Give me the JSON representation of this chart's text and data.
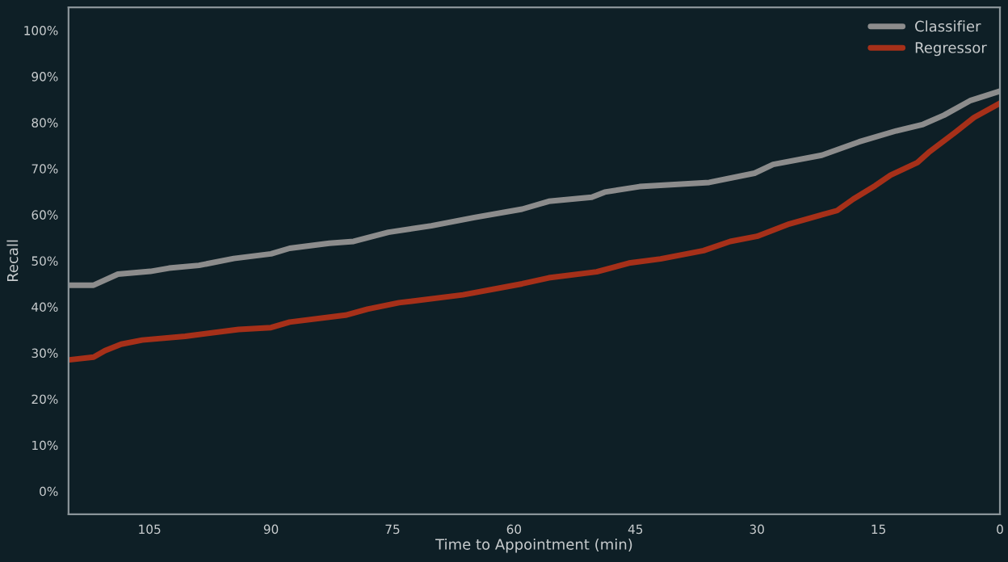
{
  "chart_data": {
    "type": "line",
    "xlabel": "Time to Appointment (min)",
    "ylabel": "Recall",
    "xlim": [
      115,
      0
    ],
    "xticks": [
      105,
      90,
      75,
      60,
      45,
      30,
      15,
      0
    ],
    "ylim": [
      -5,
      105
    ],
    "yticks": [
      {
        "value": 0,
        "label": "0%"
      },
      {
        "value": 10,
        "label": "10%"
      },
      {
        "value": 20,
        "label": "20%"
      },
      {
        "value": 30,
        "label": "30%"
      },
      {
        "value": 40,
        "label": "40%"
      },
      {
        "value": 50,
        "label": "50%"
      },
      {
        "value": 60,
        "label": "60%"
      },
      {
        "value": 70,
        "label": "70%"
      },
      {
        "value": 80,
        "label": "80%"
      },
      {
        "value": 90,
        "label": "90%"
      },
      {
        "value": 100,
        "label": "100%"
      }
    ],
    "grid": false,
    "legend": "top right",
    "marker": "none",
    "line_style": "solid",
    "series": [
      {
        "name": "Classifier",
        "color": "#8c8c8c",
        "x": [
          114.9,
          111.9,
          108.9,
          104.9,
          102.6,
          98.9,
          94.6,
          90.0,
          87.7,
          82.8,
          79.8,
          75.5,
          70.2,
          64.9,
          59.0,
          55.7,
          50.4,
          48.8,
          44.5,
          35.9,
          30.3,
          28.0,
          22.0,
          17.4,
          12.8,
          9.5,
          6.9,
          3.6,
          0
        ],
        "values": [
          44.7,
          44.7,
          47.1,
          47.7,
          48.4,
          49.0,
          50.5,
          51.5,
          52.7,
          53.8,
          54.2,
          56.2,
          57.6,
          59.4,
          61.2,
          62.9,
          63.8,
          64.9,
          66.1,
          67.0,
          69.0,
          70.9,
          72.9,
          75.8,
          78.2,
          79.6,
          81.6,
          84.8,
          86.8
        ]
      },
      {
        "name": "Regressor",
        "color": "#a63019",
        "x": [
          114.9,
          111.9,
          110.5,
          108.5,
          105.9,
          100.6,
          94.0,
          90.0,
          87.7,
          80.8,
          78.1,
          74.2,
          66.3,
          59.0,
          55.7,
          49.8,
          45.8,
          41.9,
          36.6,
          33.3,
          30.0,
          26.0,
          20.1,
          18.1,
          15.4,
          13.5,
          10.2,
          8.8,
          5.5,
          3.2,
          0
        ],
        "values": [
          28.5,
          29.1,
          30.5,
          31.9,
          32.8,
          33.6,
          35.1,
          35.5,
          36.7,
          38.2,
          39.5,
          40.9,
          42.6,
          45.0,
          46.3,
          47.6,
          49.5,
          50.4,
          52.2,
          54.2,
          55.3,
          58.0,
          60.9,
          63.4,
          66.3,
          68.6,
          71.3,
          73.5,
          77.9,
          81.1,
          84.2
        ]
      }
    ]
  }
}
